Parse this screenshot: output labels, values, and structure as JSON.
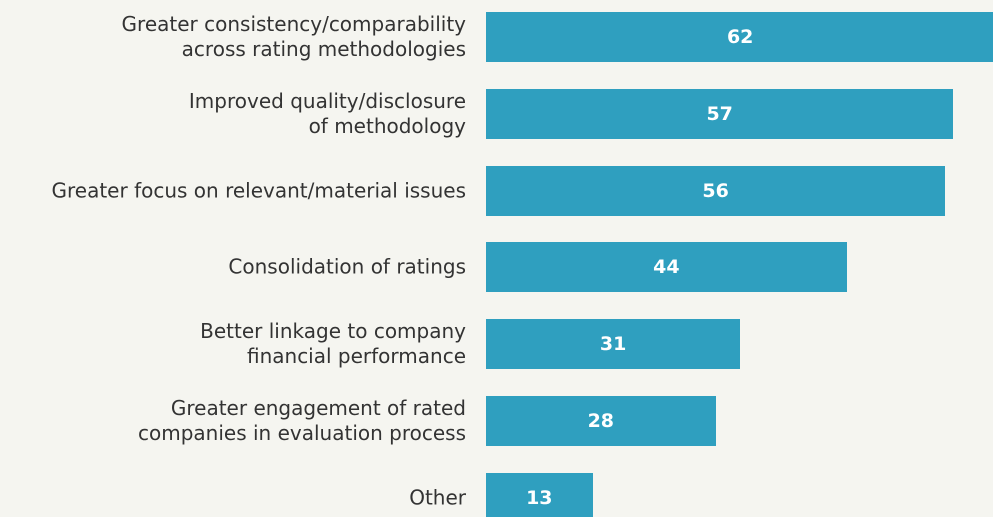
{
  "chart_data": {
    "type": "bar",
    "orientation": "horizontal",
    "categories": [
      "Greater consistency/comparability\nacross rating methodologies",
      "Improved quality/disclosure\nof methodology",
      "Greater focus on relevant/material issues",
      "Consolidation of ratings",
      "Better linkage to company\nfinancial performance",
      "Greater engagement of rated\ncompanies in evaluation process",
      "Other"
    ],
    "values": [
      62,
      57,
      56,
      44,
      31,
      28,
      13
    ],
    "color": "#2f9fbf"
  }
}
